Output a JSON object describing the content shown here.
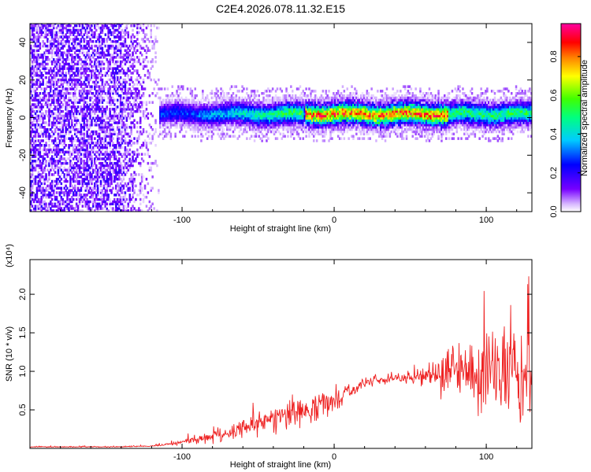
{
  "title": "C2E4.2026.078.11.32.E15",
  "chart_data": [
    {
      "type": "heatmap",
      "xlabel": "Height of straight line (km)",
      "ylabel": "Frequency (Hz)",
      "xlim": [
        -200,
        130
      ],
      "ylim": [
        -50,
        50
      ],
      "x_ticks": [
        -100,
        0,
        100
      ],
      "y_ticks": [
        -40,
        -20,
        0,
        20,
        40
      ],
      "colorbar": {
        "label": "Normalized spectral amplitude",
        "range": [
          0,
          0.97
        ],
        "ticks": [
          0.0,
          0.2,
          0.4,
          0.6,
          0.8
        ],
        "tick_labels": [
          "0.0",
          "0.2",
          "0.4",
          "0.6",
          "0.8"
        ],
        "colormap": [
          "#ffffff",
          "#d8b8ff",
          "#7700ff",
          "#0000ff",
          "#00ccff",
          "#00ff80",
          "#40ff00",
          "#ffff00",
          "#ff8000",
          "#ff0000",
          "#ff00a0"
        ]
      },
      "features": [
        {
          "name": "broadband noise",
          "x_range": [
            -200,
            -115
          ],
          "freq_range": [
            -50,
            50
          ],
          "amplitude": 0.1
        },
        {
          "name": "signal band",
          "x_range": [
            -115,
            130
          ],
          "freq_center": 1.5,
          "amplitude_peak": 0.9,
          "peak_x_range": [
            -20,
            75
          ]
        }
      ]
    },
    {
      "type": "line",
      "xlabel": "Height of straight line (km)",
      "ylabel": "SNR (10 * v/v)",
      "y_multiplier": "(x10⁴)",
      "xlim": [
        -200,
        130
      ],
      "ylim": [
        0,
        2.45
      ],
      "x_ticks": [
        -100,
        0,
        100
      ],
      "y_ticks": [
        0.5,
        1.0,
        1.5,
        2.0
      ],
      "y_tick_labels": [
        "0.5",
        "1.0",
        "1.5",
        "2.0"
      ],
      "series": [
        {
          "name": "SNR",
          "color": "#ee2222",
          "x": [
            -200,
            -180,
            -160,
            -140,
            -120,
            -110,
            -100,
            -90,
            -80,
            -70,
            -60,
            -50,
            -40,
            -30,
            -20,
            -10,
            0,
            10,
            20,
            30,
            40,
            50,
            60,
            70,
            80,
            90,
            100,
            110,
            120,
            130
          ],
          "y": [
            0.02,
            0.02,
            0.02,
            0.02,
            0.03,
            0.05,
            0.08,
            0.12,
            0.15,
            0.2,
            0.27,
            0.32,
            0.38,
            0.45,
            0.5,
            0.55,
            0.62,
            0.75,
            0.85,
            0.88,
            0.9,
            0.92,
            0.95,
            0.97,
            0.95,
            0.95,
            1.05,
            1.0,
            0.95,
            0.9
          ],
          "spread": [
            0.01,
            0.01,
            0.01,
            0.01,
            0.01,
            0.03,
            0.05,
            0.08,
            0.12,
            0.15,
            0.2,
            0.25,
            0.28,
            0.3,
            0.3,
            0.28,
            0.22,
            0.15,
            0.1,
            0.1,
            0.1,
            0.12,
            0.25,
            0.4,
            0.6,
            0.8,
            1.0,
            1.0,
            0.9,
            0.7
          ]
        }
      ]
    }
  ]
}
